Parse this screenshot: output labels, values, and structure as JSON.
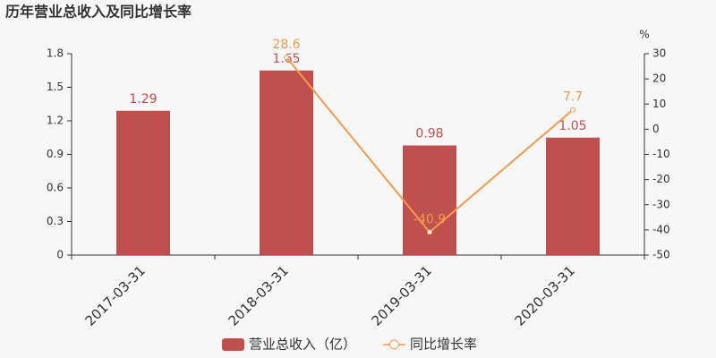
{
  "chart_data": {
    "type": "bar",
    "title": "历年营业总收入及同比增长率",
    "categories": [
      "2017-03-31",
      "2018-03-31",
      "2019-03-31",
      "2020-03-31"
    ],
    "series": [
      {
        "name": "营业总收入（亿）",
        "type": "bar",
        "color": "#c0504d",
        "values": [
          1.29,
          1.65,
          0.98,
          1.05
        ]
      },
      {
        "name": "同比增长率",
        "type": "line",
        "axis": "y2",
        "color": "#f5994e",
        "values": [
          null,
          28.6,
          -40.9,
          7.7
        ]
      }
    ],
    "ylim": [
      0,
      1.8
    ],
    "yticks": [
      0,
      0.3,
      0.6,
      0.9,
      1.2,
      1.5,
      1.8
    ],
    "y2label": "%",
    "y2lim": [
      -50,
      30
    ],
    "y2ticks": [
      -50,
      -40,
      -30,
      -20,
      -10,
      0,
      10,
      20,
      30
    ],
    "grid": false,
    "legend": "bottom"
  }
}
